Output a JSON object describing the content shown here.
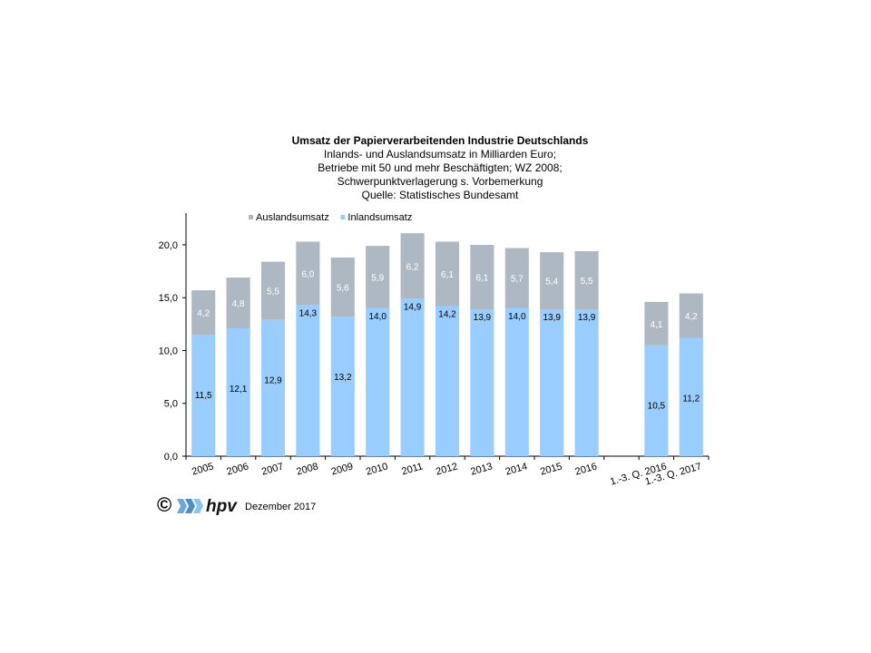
{
  "chart_data": {
    "type": "bar",
    "stacked": true,
    "title": "Umsatz der Papierverarbeitenden Industrie Deutschlands",
    "subtitle_lines": [
      "Inlands- und Auslandsumsatz in Milliarden Euro;",
      "Betriebe mit 50 und mehr Beschäftigten;  WZ 2008;",
      "Schwerpunktverlagerung   s. Vorbemerkung",
      "Quelle:  Statistisches Bundesamt"
    ],
    "categories": [
      "2005",
      "2006",
      "2007",
      "2008",
      "2009",
      "2010",
      "2011",
      "2012",
      "2013",
      "2014",
      "2015",
      "2016",
      "",
      "1.-3. Q. 2016",
      "1.-3. Q. 2017"
    ],
    "series": [
      {
        "name": "Inlandsumsatz",
        "color": "#99ccff",
        "values": [
          11.5,
          12.1,
          12.9,
          14.3,
          13.2,
          14.0,
          14.9,
          14.2,
          13.9,
          14.0,
          13.9,
          13.9,
          null,
          10.5,
          11.2
        ],
        "labels": [
          "11,5",
          "12,1",
          "12,9",
          "14,3",
          "13,2",
          "14,0",
          "14,9",
          "14,2",
          "13,9",
          "14,0",
          "13,9",
          "13,9",
          "",
          "10,5",
          "11,2"
        ]
      },
      {
        "name": "Auslandsumsatz",
        "color": "#aeb8c2",
        "values": [
          4.2,
          4.8,
          5.5,
          6.0,
          5.6,
          5.9,
          6.2,
          6.1,
          6.1,
          5.7,
          5.4,
          5.5,
          null,
          4.1,
          4.2
        ],
        "labels": [
          "4,2",
          "4,8",
          "5,5",
          "6,0",
          "5,6",
          "5,9",
          "6,2",
          "6,1",
          "6,1",
          "5,7",
          "5,4",
          "5,5",
          "",
          "4,1",
          "4,2"
        ]
      }
    ],
    "legend_order": [
      "Auslandsumsatz",
      "Inlandsumsatz"
    ],
    "legend_position": "top-left",
    "ylim": [
      0,
      23
    ],
    "yticks": [
      0,
      5,
      10,
      15,
      20
    ],
    "ytick_labels": [
      "0,0",
      "5,0",
      "10,0",
      "15,0",
      "20,0"
    ],
    "grid": false
  },
  "footer": {
    "copyright": "©",
    "logo_icon": "hpv-logo-icon",
    "logo_text": "hpv",
    "date": "Dezember 2017"
  }
}
